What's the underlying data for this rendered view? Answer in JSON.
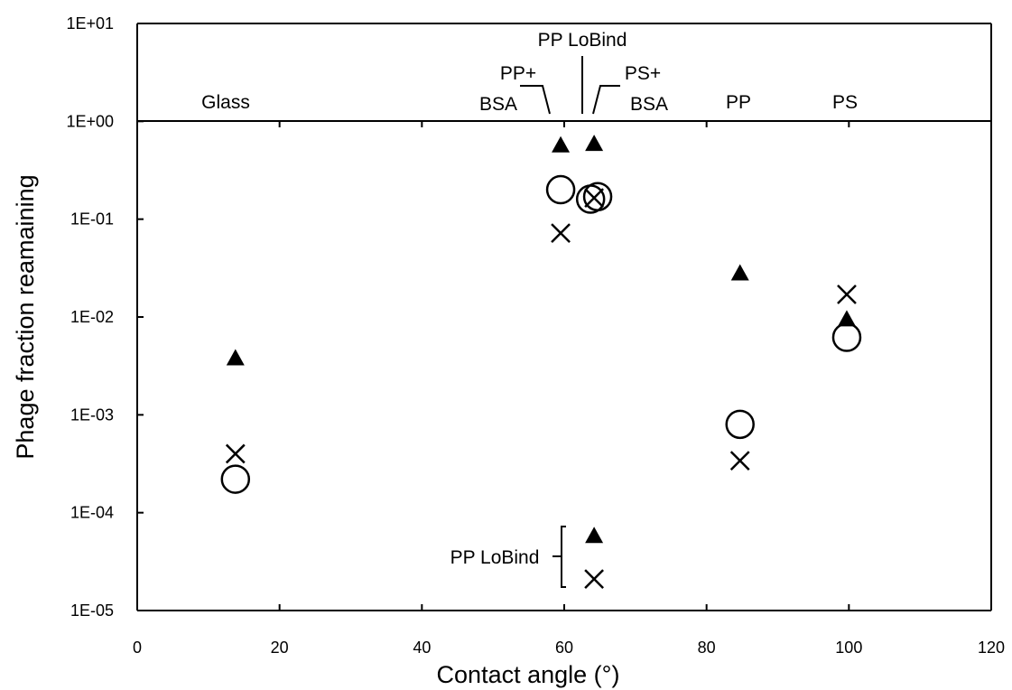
{
  "chart_data": {
    "type": "scatter",
    "xlabel": "Contact angle (°)",
    "ylabel": "Phage fraction reamaining",
    "xlim": [
      0,
      120
    ],
    "ylim_log10": [
      -5,
      1
    ],
    "y_scale": "log",
    "grid": false,
    "x_ticks": [
      0,
      20,
      40,
      60,
      80,
      100,
      120
    ],
    "x_tick_labels": [
      "0",
      "20",
      "40",
      "60",
      "80",
      "100",
      "120"
    ],
    "y_ticks": [
      1e-05,
      0.0001,
      0.001,
      0.01,
      0.1,
      1,
      10
    ],
    "y_tick_labels": [
      "1E-05",
      "1E-04",
      "1E-03",
      "1E-02",
      "1E-01",
      "1E+00",
      "1E+01"
    ],
    "series": [
      {
        "marker": "triangle",
        "points": [
          {
            "x": 13.8,
            "y": 0.0038
          },
          {
            "x": 59.5,
            "y": 0.57
          },
          {
            "x": 64.2,
            "y": 0.59
          },
          {
            "x": 64.2,
            "y": 5.8e-05
          },
          {
            "x": 84.7,
            "y": 0.028
          },
          {
            "x": 99.7,
            "y": 0.0095
          }
        ]
      },
      {
        "marker": "circle",
        "points": [
          {
            "x": 13.8,
            "y": 0.00022
          },
          {
            "x": 59.5,
            "y": 0.2
          },
          {
            "x": 63.7,
            "y": 0.16
          },
          {
            "x": 64.7,
            "y": 0.17
          },
          {
            "x": 84.7,
            "y": 0.0008
          },
          {
            "x": 99.7,
            "y": 0.0062
          }
        ]
      },
      {
        "marker": "cross",
        "points": [
          {
            "x": 13.8,
            "y": 0.0004
          },
          {
            "x": 59.5,
            "y": 0.072
          },
          {
            "x": 64.2,
            "y": 0.165
          },
          {
            "x": 64.2,
            "y": 2.1e-05
          },
          {
            "x": 84.7,
            "y": 0.00034
          },
          {
            "x": 99.7,
            "y": 0.017
          }
        ]
      }
    ],
    "annotations": {
      "glass": "Glass",
      "pp_bsa_1": "PP+",
      "pp_bsa_2": "BSA",
      "pp_lobind_top": "PP LoBind",
      "ps_bsa_1": "PS+",
      "ps_bsa_2": "BSA",
      "pp": "PP",
      "ps": "PS",
      "pp_lobind_bottom": "PP LoBind"
    }
  }
}
